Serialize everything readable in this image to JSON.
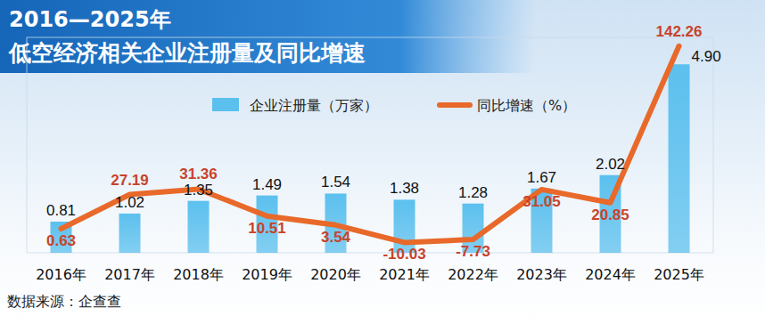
{
  "chart_data": {
    "type": "bar",
    "title": "2016—2025年\n低空经济相关企业注册量及同比增速",
    "categories": [
      "2016年",
      "2017年",
      "2018年",
      "2019年",
      "2020年",
      "2021年",
      "2022年",
      "2023年",
      "2024年",
      "2025年"
    ],
    "series": [
      {
        "name": "企业注册量（万家）",
        "type": "bar",
        "color": "#5cc0ee",
        "values": [
          0.81,
          1.02,
          1.35,
          1.49,
          1.54,
          1.38,
          1.28,
          1.67,
          2.02,
          4.9
        ],
        "value_labels": [
          "0.81",
          "1.02",
          "1.35",
          "1.49",
          "1.54",
          "1.38",
          "1.28",
          "1.67",
          "2.02",
          "4.90"
        ]
      },
      {
        "name": "同比增速（%）",
        "type": "line",
        "color": "#e8692a",
        "axis": "y2",
        "line_style": "solid",
        "values": [
          0.63,
          27.19,
          31.36,
          10.51,
          3.54,
          -10.03,
          -7.73,
          31.05,
          20.85,
          142.26
        ]
      }
    ],
    "ylim": [
      0,
      5.6
    ],
    "yticks": [],
    "y2lim": [
      -18,
      149
    ],
    "y2ticks": [],
    "grid": false,
    "legend": "top",
    "data_labels": true,
    "tick_labels": "x",
    "annotations": [
      "数据来源：企查查"
    ]
  }
}
